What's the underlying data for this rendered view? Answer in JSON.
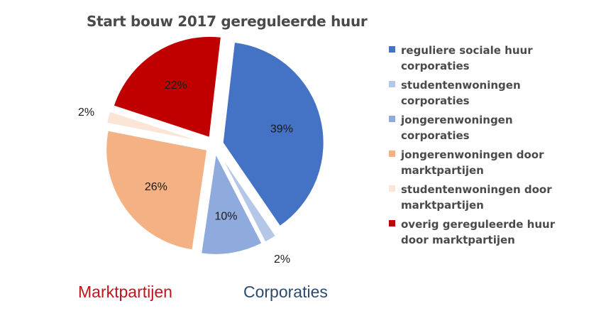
{
  "chart_data": {
    "type": "pie",
    "title": "Start bouw 2017 gereguleerde huur",
    "categories": [
      "reguliere sociale huur corporaties",
      "studentenwoningen corporaties",
      "jongerenwoningen corporaties",
      "jongerenwoningen door marktpartijen",
      "studentenwoningen door marktpartijen",
      "overig gereguleerde huur door marktpartijen"
    ],
    "values": [
      39,
      2,
      10,
      26,
      2,
      22
    ],
    "data_labels": [
      "39%",
      "2%",
      "10%",
      "26%",
      "2%",
      "22%"
    ],
    "colors": [
      "#4472c4",
      "#b4c7e7",
      "#8faadc",
      "#f4b183",
      "#fbe5d6",
      "#c00000"
    ],
    "legend_position": "right",
    "exploded": true
  },
  "group_labels": {
    "left": "Marktpartijen",
    "right": "Corporaties"
  }
}
